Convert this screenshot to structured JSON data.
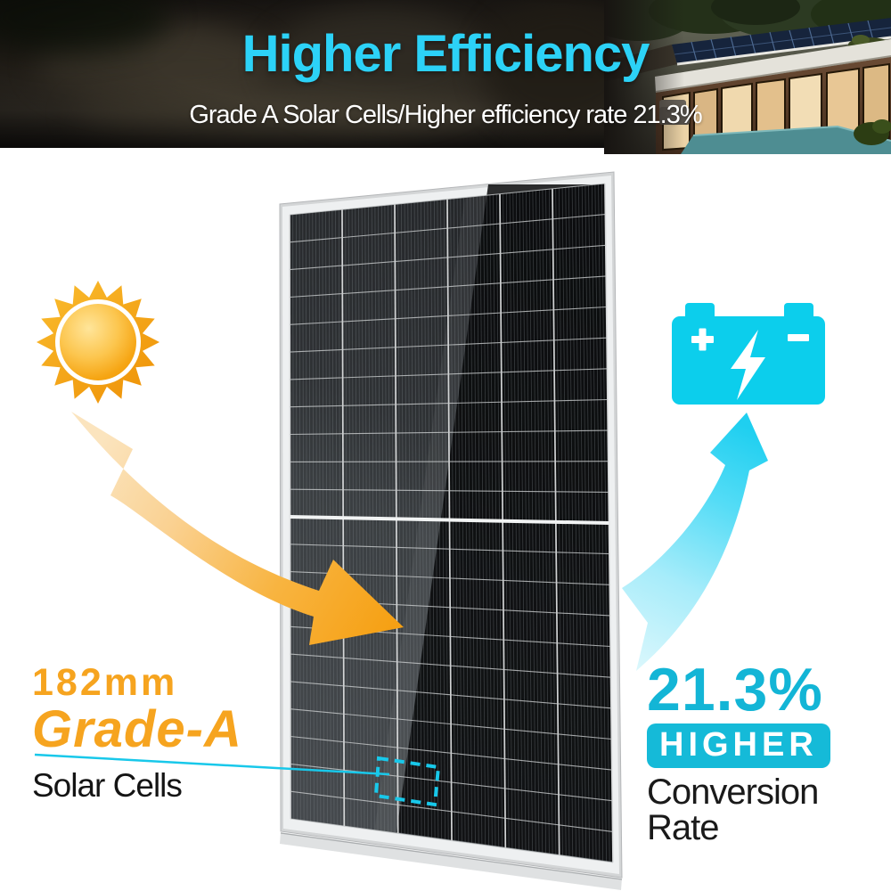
{
  "banner": {
    "heading": "Higher Efficiency",
    "subtitle": "Grade A Solar Cells/Higher efficiency rate 21.3%"
  },
  "left_callout": {
    "cell_size": "182mm",
    "grade": "Grade-A",
    "label": "Solar Cells"
  },
  "right_callout": {
    "value": "21.3%",
    "badge": "HIGHER",
    "label": "Conversion Rate"
  },
  "icons": {
    "sun": "sun-icon",
    "battery": "battery-icon",
    "lightning": "lightning-bolt-icon",
    "battery_plus": "battery-plus-icon",
    "battery_minus": "battery-minus-icon",
    "sun_to_panel": "orange-curved-arrow",
    "panel_to_battery": "cyan-curved-arrow",
    "cell_highlight": "dashed-highlight-box",
    "rooftop_panels": "rooftop-solar-array"
  },
  "colors": {
    "heading_cyan": "#2CD2F7",
    "accent_cyan": "#13B5D6",
    "badge_cyan": "#15BAD8",
    "battery_cyan": "#0CCEEC",
    "connector_cyan": "#18C8EA",
    "orange": "#F6A41F",
    "orange_deep": "#F6A013",
    "orange_light": "#FBE4BE",
    "panel_dark": "#232528",
    "panel_frame_silver": "#D3D5D6"
  }
}
